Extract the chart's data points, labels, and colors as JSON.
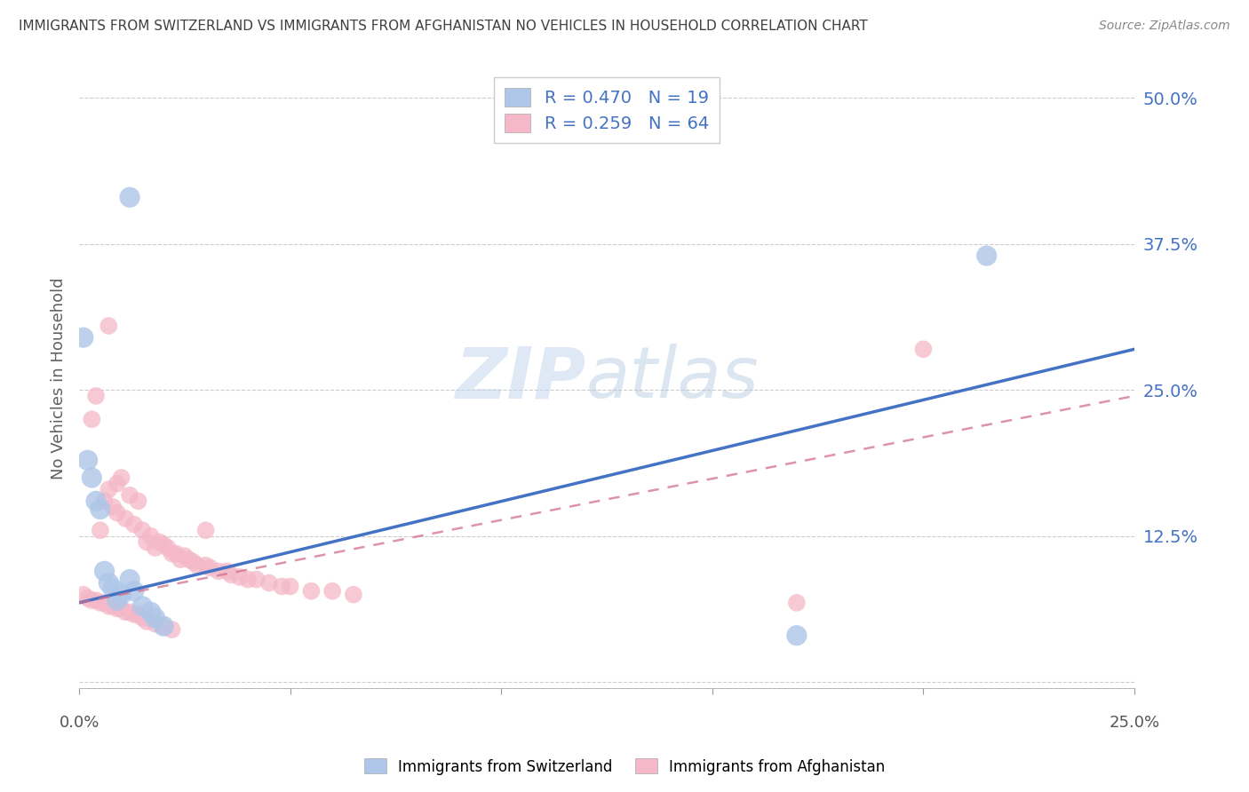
{
  "title": "IMMIGRANTS FROM SWITZERLAND VS IMMIGRANTS FROM AFGHANISTAN NO VEHICLES IN HOUSEHOLD CORRELATION CHART",
  "source": "Source: ZipAtlas.com",
  "ylabel": "No Vehicles in Household",
  "y_ticks": [
    0.0,
    0.125,
    0.25,
    0.375,
    0.5
  ],
  "y_tick_labels": [
    "",
    "12.5%",
    "25.0%",
    "37.5%",
    "50.0%"
  ],
  "xlim": [
    0.0,
    0.25
  ],
  "ylim": [
    -0.005,
    0.525
  ],
  "watermark": "ZIPatlas",
  "legend": [
    {
      "label": "R = 0.470   N = 19",
      "color": "#aec6e8"
    },
    {
      "label": "R = 0.259   N = 64",
      "color": "#f4b8c8"
    }
  ],
  "swiss_color": "#aec6e8",
  "swiss_line_color": "#4472c4",
  "afghan_color": "#f4b8c8",
  "afghan_line_color": "#d4708a",
  "background_color": "#ffffff",
  "grid_color": "#cccccc",
  "title_color": "#404040",
  "axis_label_color": "#606060",
  "tick_color": "#4472c4",
  "swiss_line_x0": 0.0,
  "swiss_line_y0": 0.068,
  "swiss_line_x1": 0.25,
  "swiss_line_y1": 0.285,
  "afghan_line_x0": 0.0,
  "afghan_line_y0": 0.068,
  "afghan_line_x1": 0.25,
  "afghan_line_y1": 0.245,
  "swiss_points": [
    [
      0.012,
      0.415
    ],
    [
      0.001,
      0.295
    ],
    [
      0.215,
      0.365
    ],
    [
      0.002,
      0.19
    ],
    [
      0.003,
      0.175
    ],
    [
      0.004,
      0.155
    ],
    [
      0.005,
      0.148
    ],
    [
      0.006,
      0.095
    ],
    [
      0.007,
      0.085
    ],
    [
      0.008,
      0.08
    ],
    [
      0.009,
      0.07
    ],
    [
      0.01,
      0.075
    ],
    [
      0.012,
      0.088
    ],
    [
      0.013,
      0.078
    ],
    [
      0.015,
      0.065
    ],
    [
      0.017,
      0.06
    ],
    [
      0.018,
      0.055
    ],
    [
      0.02,
      0.048
    ],
    [
      0.17,
      0.04
    ]
  ],
  "afghan_points": [
    [
      0.007,
      0.305
    ],
    [
      0.004,
      0.245
    ],
    [
      0.003,
      0.225
    ],
    [
      0.01,
      0.175
    ],
    [
      0.009,
      0.17
    ],
    [
      0.007,
      0.165
    ],
    [
      0.012,
      0.16
    ],
    [
      0.006,
      0.155
    ],
    [
      0.014,
      0.155
    ],
    [
      0.008,
      0.15
    ],
    [
      0.009,
      0.145
    ],
    [
      0.011,
      0.14
    ],
    [
      0.013,
      0.135
    ],
    [
      0.005,
      0.13
    ],
    [
      0.015,
      0.13
    ],
    [
      0.017,
      0.125
    ],
    [
      0.019,
      0.12
    ],
    [
      0.016,
      0.12
    ],
    [
      0.02,
      0.118
    ],
    [
      0.018,
      0.115
    ],
    [
      0.021,
      0.115
    ],
    [
      0.022,
      0.11
    ],
    [
      0.023,
      0.11
    ],
    [
      0.025,
      0.108
    ],
    [
      0.024,
      0.105
    ],
    [
      0.026,
      0.105
    ],
    [
      0.027,
      0.103
    ],
    [
      0.028,
      0.1
    ],
    [
      0.03,
      0.1
    ],
    [
      0.031,
      0.098
    ],
    [
      0.033,
      0.095
    ],
    [
      0.035,
      0.095
    ],
    [
      0.036,
      0.092
    ],
    [
      0.038,
      0.09
    ],
    [
      0.04,
      0.088
    ],
    [
      0.042,
      0.088
    ],
    [
      0.045,
      0.085
    ],
    [
      0.048,
      0.082
    ],
    [
      0.05,
      0.082
    ],
    [
      0.055,
      0.078
    ],
    [
      0.06,
      0.078
    ],
    [
      0.065,
      0.075
    ],
    [
      0.001,
      0.075
    ],
    [
      0.002,
      0.072
    ],
    [
      0.003,
      0.07
    ],
    [
      0.004,
      0.07
    ],
    [
      0.005,
      0.068
    ],
    [
      0.006,
      0.068
    ],
    [
      0.007,
      0.065
    ],
    [
      0.008,
      0.065
    ],
    [
      0.009,
      0.063
    ],
    [
      0.01,
      0.063
    ],
    [
      0.011,
      0.06
    ],
    [
      0.012,
      0.06
    ],
    [
      0.013,
      0.058
    ],
    [
      0.014,
      0.058
    ],
    [
      0.015,
      0.055
    ],
    [
      0.016,
      0.052
    ],
    [
      0.018,
      0.05
    ],
    [
      0.02,
      0.048
    ],
    [
      0.022,
      0.045
    ],
    [
      0.17,
      0.068
    ],
    [
      0.2,
      0.285
    ],
    [
      0.03,
      0.13
    ]
  ]
}
